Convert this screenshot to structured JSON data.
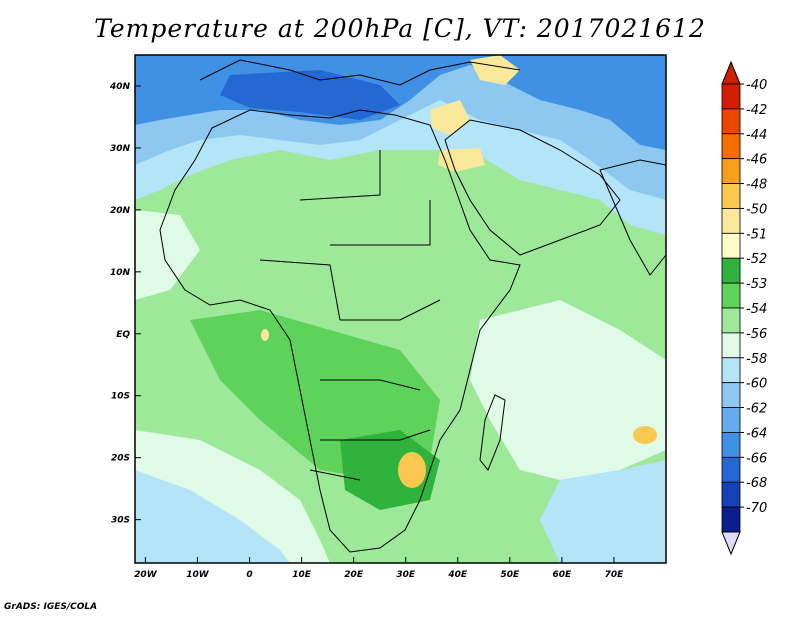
{
  "title": "Temperature at 200hPa [C], VT: 2017021612",
  "footer": "GrADS: IGES/COLA",
  "map": {
    "lon_range": [
      -22,
      80
    ],
    "lat_range": [
      -37,
      45
    ],
    "x_ticks": [
      "20W",
      "10W",
      "0",
      "10E",
      "20E",
      "30E",
      "40E",
      "50E",
      "60E",
      "70E"
    ],
    "y_ticks": [
      "40N",
      "30N",
      "20N",
      "10N",
      "EQ",
      "10S",
      "20S",
      "30S"
    ],
    "base_fill_color": "#9ee89a"
  },
  "colorbar": {
    "labels": [
      "-40",
      "-42",
      "-44",
      "-46",
      "-48",
      "-50",
      "-51",
      "-52",
      "-53",
      "-54",
      "-56",
      "-58",
      "-60",
      "-62",
      "-64",
      "-66",
      "-68",
      "-70"
    ],
    "colors": [
      "#d21e00",
      "#ea4600",
      "#f46e00",
      "#f8a01e",
      "#fac84e",
      "#fae89a",
      "#fcfcc8",
      "#2fb33c",
      "#5fd25c",
      "#9ee89a",
      "#e0fae8",
      "#b4e4f8",
      "#8cc8f0",
      "#64aaec",
      "#4090e4",
      "#2468d4",
      "#1442b8",
      "#0a1e90"
    ],
    "top_arrow_color": "#d21e00",
    "bottom_arrow_color": "#dcdcfa"
  }
}
